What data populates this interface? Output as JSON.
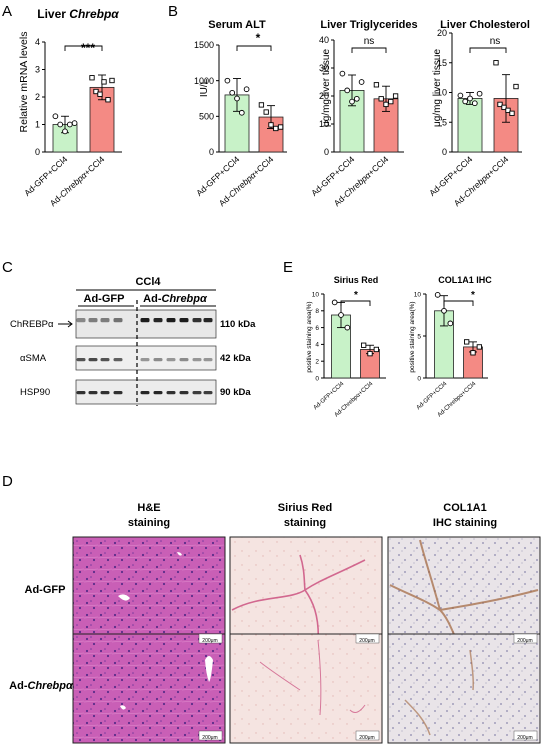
{
  "panels": {
    "A": {
      "letter": "A",
      "title_prefix": "Liver ",
      "title_gene": "Chrebpα",
      "ylabel": "Relative mRNA levels",
      "sig": "***",
      "colors": {
        "gfp": "#c8f2c8",
        "chrebp": "#f48a84"
      }
    },
    "B": {
      "letter": "B",
      "plots": [
        {
          "title": "Serum ALT",
          "ylabel": "IU/L",
          "sig": "*"
        },
        {
          "title": "Liver Triglycerides",
          "ylabel": "μg/mg liver tissue",
          "sig": "ns"
        },
        {
          "title": "Liver Cholesterol",
          "ylabel": "μg/mg liver tissue",
          "sig": "ns"
        }
      ]
    },
    "C": {
      "letter": "C",
      "treatment": "CCl4",
      "group_gfp": "Ad-GFP",
      "group_chrebp_prefix": "Ad-",
      "group_chrebp_gene": "Chrebpα",
      "rows": [
        {
          "label": "ChREBPα",
          "kda": "110 kDa"
        },
        {
          "label": "αSMA",
          "kda": "42 kDa"
        },
        {
          "label": "HSP90",
          "kda": "90 kDa"
        }
      ]
    },
    "D": {
      "letter": "D",
      "col_titles": [
        {
          "line1": "H&E",
          "line2": "staining"
        },
        {
          "line1": "Sirius Red",
          "line2": "staining"
        },
        {
          "line1": "COL1A1",
          "line2": "IHC  staining"
        }
      ],
      "row_gfp": "Ad-GFP",
      "row_chrebp_prefix": "Ad-",
      "row_chrebp_gene": "Chrebpα",
      "scalebar": "200μm"
    },
    "E": {
      "letter": "E",
      "plots": [
        {
          "title": "Sirius Red",
          "ylabel": "positive staining area(%)",
          "sig": "*"
        },
        {
          "title": "COL1A1 IHC",
          "ylabel": "positive staining area(%)",
          "sig": "*"
        }
      ]
    }
  },
  "xlabels": {
    "gfp": "Ad-GFP+CCl4",
    "chrebp_prefix": "Ad-",
    "chrebp_gene": "Chrebpα",
    "chrebp_suffix": "+CCl4",
    "chrebp_plain": "Ad-Chrebpα+CCl4"
  },
  "chart_data": [
    {
      "type": "bar",
      "panel": "A",
      "categories": [
        "Ad-GFP+CCl4",
        "Ad-Chrebpα+CCl4"
      ],
      "values": [
        1.0,
        2.35
      ],
      "errors": [
        0.3,
        0.45
      ],
      "points": [
        [
          1.3,
          1.0,
          0.75,
          1.0,
          1.05
        ],
        [
          2.7,
          2.2,
          2.1,
          2.55,
          1.9,
          2.6
        ]
      ],
      "ylabel": "Relative mRNA levels",
      "ylim": [
        0,
        4
      ],
      "yticks": [
        0,
        1,
        2,
        3,
        4
      ]
    },
    {
      "type": "bar",
      "panel": "B1",
      "categories": [
        "Ad-GFP+CCl4",
        "Ad-Chrebpα+CCl4"
      ],
      "values": [
        800,
        490
      ],
      "errors": [
        230,
        160
      ],
      "points": [
        [
          1000,
          830,
          750,
          550,
          880
        ],
        [
          660,
          560,
          380,
          330,
          350
        ]
      ],
      "title": "Serum ALT",
      "ylabel": "IU/L",
      "ylim": [
        0,
        1500
      ],
      "yticks": [
        0,
        500,
        1000,
        1500
      ]
    },
    {
      "type": "bar",
      "panel": "B2",
      "categories": [
        "Ad-GFP+CCl4",
        "Ad-Chrebpα+CCl4"
      ],
      "values": [
        22,
        19
      ],
      "errors": [
        5.5,
        4.5
      ],
      "points": [
        [
          28,
          22,
          18,
          19,
          25
        ],
        [
          24,
          19,
          17,
          18,
          20
        ]
      ],
      "title": "Liver Triglycerides",
      "ylabel": "μg/mg liver tissue",
      "ylim": [
        0,
        40
      ],
      "yticks": [
        0,
        10,
        20,
        30,
        40
      ]
    },
    {
      "type": "bar",
      "panel": "B3",
      "categories": [
        "Ad-GFP+CCl4",
        "Ad-Chrebpα+CCl4"
      ],
      "values": [
        9,
        9
      ],
      "errors": [
        1,
        4
      ],
      "points": [
        [
          9.5,
          8.5,
          9,
          8.2,
          9.8
        ],
        [
          15,
          8,
          7.5,
          7,
          6.5,
          11
        ]
      ],
      "title": "Liver Cholesterol",
      "ylabel": "μg/mg liver tissue",
      "ylim": [
        0,
        20
      ],
      "yticks": [
        0,
        5,
        10,
        15,
        20
      ]
    },
    {
      "type": "bar",
      "panel": "E1",
      "categories": [
        "Ad-GFP+CCl4",
        "Ad-Chrebpα+CCl4"
      ],
      "values": [
        7.5,
        3.4
      ],
      "errors": [
        1.5,
        0.5
      ],
      "points": [
        [
          9.0,
          7.5,
          6.0
        ],
        [
          3.9,
          2.9,
          3.4
        ]
      ],
      "title": "Sirius Red",
      "ylabel": "positive staining area(%)",
      "ylim": [
        0,
        10
      ],
      "yticks": [
        0,
        2,
        4,
        6,
        8,
        10
      ]
    },
    {
      "type": "bar",
      "panel": "E2",
      "categories": [
        "Ad-GFP+CCl4",
        "Ad-Chrebpα+CCl4"
      ],
      "values": [
        8,
        3.7
      ],
      "errors": [
        1.8,
        0.6
      ],
      "points": [
        [
          9.9,
          8.0,
          6.5
        ],
        [
          4.3,
          3.0,
          3.7
        ]
      ],
      "title": "COL1A1 IHC",
      "ylabel": "positive staining area(%)",
      "ylim": [
        0,
        10
      ],
      "yticks": [
        0,
        5,
        10
      ]
    }
  ]
}
